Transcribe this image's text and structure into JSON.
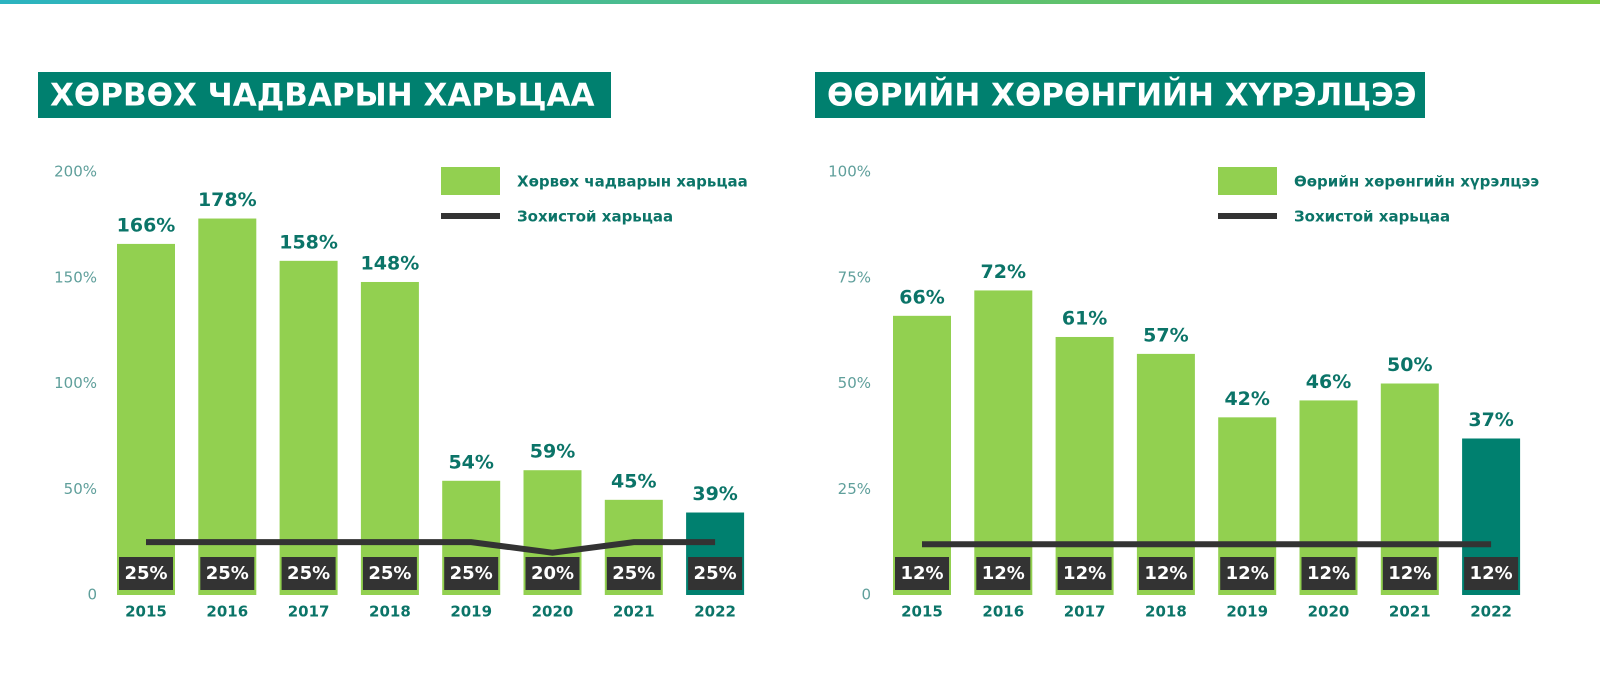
{
  "chart_data": [
    {
      "type": "bar",
      "title": "ХӨРВӨХ ЧАДВАРЫН ХАРЬЦАА",
      "categories": [
        "2015",
        "2016",
        "2017",
        "2018",
        "2019",
        "2020",
        "2021",
        "2022"
      ],
      "series": [
        {
          "name": "Хөрвөх чадварын харьцаа",
          "type": "bar",
          "color": "#92d050",
          "colors": [
            "#92d050",
            "#92d050",
            "#92d050",
            "#92d050",
            "#92d050",
            "#92d050",
            "#92d050",
            "#00806f"
          ],
          "values": [
            166,
            178,
            158,
            148,
            54,
            59,
            45,
            39
          ],
          "value_labels": [
            "166%",
            "178%",
            "158%",
            "148%",
            "54%",
            "59%",
            "45%",
            "39%"
          ]
        },
        {
          "name": "Зохистой харьцаа",
          "type": "line",
          "color": "#333333",
          "values": [
            25,
            25,
            25,
            25,
            25,
            20,
            25,
            25
          ],
          "value_labels": [
            "25%",
            "25%",
            "25%",
            "25%",
            "25%",
            "20%",
            "25%",
            "25%"
          ]
        }
      ],
      "ylim": [
        0,
        200
      ],
      "yticks": [
        0,
        {
          "value": 50,
          "label": "50%"
        },
        {
          "value": 100,
          "label": "100%"
        },
        {
          "value": 150,
          "label": "150%"
        },
        {
          "value": 200,
          "label": "200%"
        }
      ]
    },
    {
      "type": "bar",
      "title": "ӨӨРИЙН ХӨРӨНГИЙН ХҮРЭЛЦЭЭ",
      "categories": [
        "2015",
        "2016",
        "2017",
        "2018",
        "2019",
        "2020",
        "2021",
        "2022"
      ],
      "series": [
        {
          "name": "Өөрийн хөрөнгийн хүрэлцээ",
          "type": "bar",
          "color": "#92d050",
          "colors": [
            "#92d050",
            "#92d050",
            "#92d050",
            "#92d050",
            "#92d050",
            "#92d050",
            "#92d050",
            "#00806f"
          ],
          "values": [
            66,
            72,
            61,
            57,
            42,
            46,
            50,
            37
          ],
          "value_labels": [
            "66%",
            "72%",
            "61%",
            "57%",
            "42%",
            "46%",
            "50%",
            "37%"
          ]
        },
        {
          "name": "Зохистой харьцаа",
          "type": "line",
          "color": "#333333",
          "values": [
            12,
            12,
            12,
            12,
            12,
            12,
            12,
            12
          ],
          "value_labels": [
            "12%",
            "12%",
            "12%",
            "12%",
            "12%",
            "12%",
            "12%",
            "12%"
          ]
        }
      ],
      "ylim": [
        0,
        100
      ],
      "yticks": [
        0,
        {
          "value": 25,
          "label": "25%"
        },
        {
          "value": 50,
          "label": "50%"
        },
        {
          "value": 75,
          "label": "75%"
        },
        {
          "value": 100,
          "label": "100%"
        }
      ]
    }
  ]
}
